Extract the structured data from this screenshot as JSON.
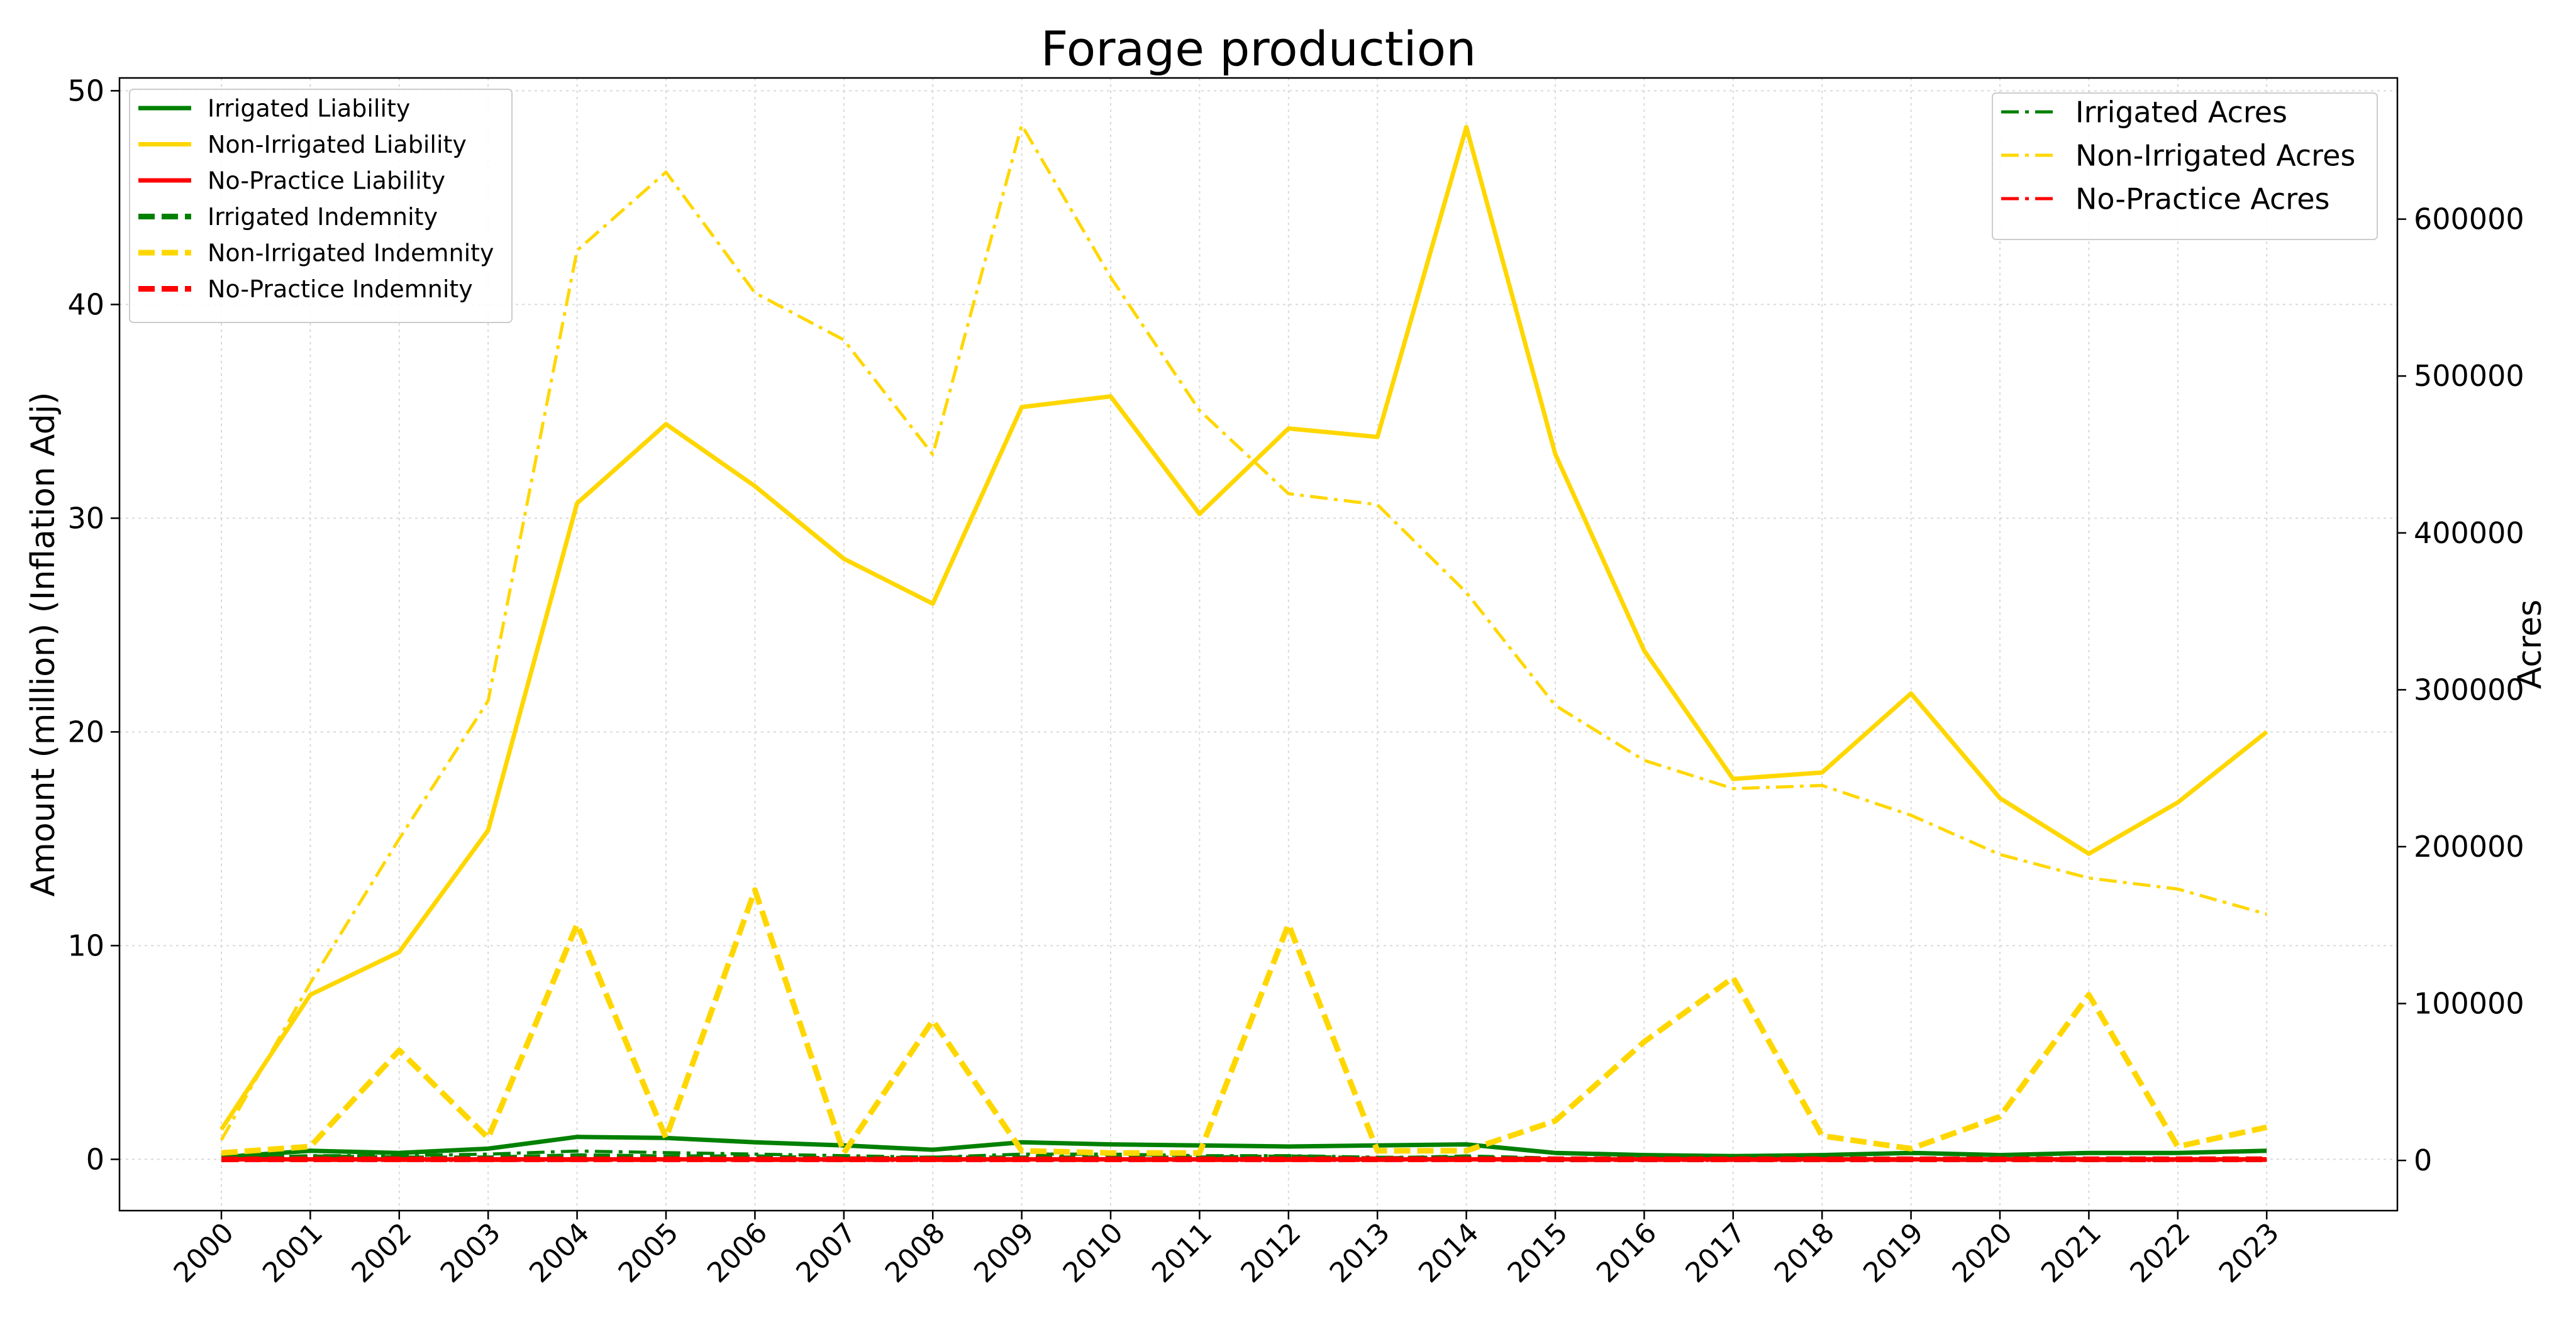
{
  "chart_data": {
    "type": "line",
    "title": "Forage production",
    "xlabel": "",
    "ylabel": "Amount (million) (Inflation Adj)",
    "ylabel_right": "Acres",
    "x": [
      "2000",
      "2001",
      "2002",
      "2003",
      "2004",
      "2005",
      "2006",
      "2007",
      "2008",
      "2009",
      "2010",
      "2011",
      "2012",
      "2013",
      "2014",
      "2015",
      "2016",
      "2017",
      "2018",
      "2019",
      "2020",
      "2021",
      "2022",
      "2023"
    ],
    "ylim": [
      -2.4,
      50.6
    ],
    "ylim_right": [
      -32000,
      690000
    ],
    "yticks": [
      0,
      10,
      20,
      30,
      40,
      50
    ],
    "yticks_right": [
      0,
      100000,
      200000,
      300000,
      400000,
      500000,
      600000
    ],
    "grid": true,
    "legend_left_placement": "top-left",
    "legend_right_placement": "top-right",
    "series": [
      {
        "name": "Irrigated Liability",
        "axis": "left",
        "style": "solid",
        "color": "#008000",
        "values": [
          0.1,
          0.4,
          0.3,
          0.5,
          1.05,
          1.0,
          0.8,
          0.65,
          0.45,
          0.8,
          0.7,
          0.65,
          0.6,
          0.65,
          0.7,
          0.3,
          0.2,
          0.15,
          0.2,
          0.3,
          0.2,
          0.3,
          0.3,
          0.4
        ]
      },
      {
        "name": "Non-Irrigated Liability",
        "axis": "left",
        "style": "solid",
        "color": "#ffd700",
        "values": [
          1.4,
          7.7,
          9.7,
          15.4,
          30.7,
          34.4,
          31.5,
          28.1,
          26.0,
          35.2,
          35.7,
          30.2,
          34.2,
          33.8,
          48.3,
          33.0,
          23.8,
          17.8,
          18.1,
          21.8,
          16.9,
          14.3,
          16.7,
          20.0
        ]
      },
      {
        "name": "No-Practice Liability",
        "axis": "left",
        "style": "solid",
        "color": "#ff0000",
        "values": [
          0,
          0,
          0,
          0,
          0,
          0,
          0,
          0,
          0,
          0,
          0,
          0,
          0,
          0,
          0,
          0,
          0,
          0,
          0,
          0,
          0,
          0,
          0,
          0
        ]
      },
      {
        "name": "Irrigated Indemnity",
        "axis": "left",
        "style": "dashed",
        "color": "#008000",
        "values": [
          0.0,
          0.1,
          0.05,
          0.05,
          0.15,
          0.1,
          0.1,
          0.0,
          0.05,
          0.05,
          0.05,
          0.05,
          0.1,
          0.0,
          0.1,
          0.0,
          0.0,
          0.0,
          0.0,
          0.0,
          0.0,
          0.0,
          0.0,
          0.0
        ]
      },
      {
        "name": "Non-Irrigated Indemnity",
        "axis": "left",
        "style": "dashed",
        "color": "#ffd700",
        "values": [
          0.3,
          0.6,
          5.1,
          1.0,
          11.0,
          1.0,
          12.6,
          0.3,
          6.5,
          0.4,
          0.3,
          0.3,
          11.0,
          0.4,
          0.4,
          1.8,
          5.5,
          8.5,
          1.1,
          0.5,
          2.0,
          7.7,
          0.6,
          1.5
        ]
      },
      {
        "name": "No-Practice Indemnity",
        "axis": "left",
        "style": "dashed",
        "color": "#ff0000",
        "values": [
          0,
          0,
          0,
          0,
          0,
          0,
          0,
          0,
          0,
          0,
          0,
          0,
          0,
          0,
          0,
          0,
          0,
          0,
          0,
          0,
          0,
          0,
          0,
          0
        ]
      },
      {
        "name": "Irrigated Acres",
        "axis": "right",
        "style": "dashdot",
        "color": "#008000",
        "values": [
          1000,
          3000,
          3000,
          4000,
          6000,
          5000,
          4000,
          3000,
          2000,
          4000,
          4000,
          3000,
          3000,
          2000,
          2000,
          1000,
          1000,
          1000,
          1000,
          1000,
          1000,
          1000,
          1000,
          1000
        ]
      },
      {
        "name": "Non-Irrigated Acres",
        "axis": "right",
        "style": "dashdot",
        "color": "#ffd700",
        "values": [
          13000,
          113000,
          205000,
          293000,
          580000,
          630000,
          553000,
          523000,
          450000,
          660000,
          563000,
          478000,
          425000,
          418000,
          362000,
          290000,
          255000,
          237000,
          239000,
          220000,
          195000,
          180000,
          173000,
          157000
        ]
      },
      {
        "name": "No-Practice Acres",
        "axis": "right",
        "style": "dashdot",
        "color": "#ff0000",
        "values": [
          0,
          0,
          0,
          0,
          0,
          0,
          0,
          0,
          0,
          0,
          0,
          0,
          0,
          0,
          0,
          0,
          0,
          0,
          0,
          0,
          0,
          0,
          0,
          0
        ]
      }
    ]
  }
}
